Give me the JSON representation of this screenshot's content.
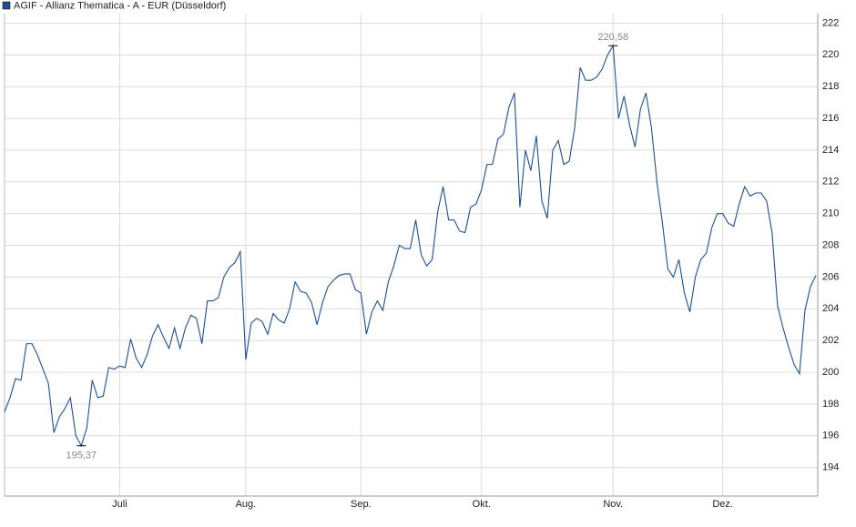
{
  "chart_data": {
    "type": "line",
    "categories": [
      null,
      null,
      null,
      null,
      null,
      null,
      null,
      null,
      null,
      null,
      null,
      null,
      null,
      null,
      null,
      null,
      null,
      null,
      null,
      null,
      null,
      "Juli",
      null,
      null,
      null,
      null,
      null,
      null,
      null,
      null,
      null,
      null,
      null,
      null,
      null,
      null,
      null,
      null,
      null,
      null,
      null,
      null,
      null,
      null,
      "Aug.",
      null,
      null,
      null,
      null,
      null,
      null,
      null,
      null,
      null,
      null,
      null,
      null,
      null,
      null,
      null,
      null,
      null,
      null,
      null,
      null,
      "Sep.",
      null,
      null,
      null,
      null,
      null,
      null,
      null,
      null,
      null,
      null,
      null,
      null,
      null,
      null,
      null,
      null,
      null,
      null,
      null,
      null,
      null,
      "Okt.",
      null,
      null,
      null,
      null,
      null,
      null,
      null,
      null,
      null,
      null,
      null,
      null,
      null,
      null,
      null,
      null,
      null,
      null,
      null,
      null,
      null,
      null,
      null,
      "Nov.",
      null,
      null,
      null,
      null,
      null,
      null,
      null,
      null,
      null,
      null,
      null,
      null,
      null,
      null,
      null,
      null,
      null,
      null,
      null,
      "Dez.",
      null,
      null,
      null,
      null,
      null,
      null,
      null,
      null,
      null,
      null,
      null,
      null,
      null,
      null,
      null,
      null,
      null
    ],
    "series": [
      {
        "name": "AGIF - Allianz Thematica - A - EUR (Düsseldorf)",
        "color": "#1c4f96",
        "values": [
          197.5,
          198.4,
          199.6,
          199.5,
          201.8,
          201.8,
          201.1,
          200.2,
          199.3,
          196.2,
          197.2,
          197.7,
          198.4,
          196.0,
          195.37,
          196.5,
          199.5,
          198.4,
          198.5,
          200.3,
          200.2,
          200.4,
          200.3,
          202.1,
          200.9,
          200.3,
          201.1,
          202.3,
          203.0,
          202.2,
          201.5,
          202.8,
          201.5,
          202.8,
          203.6,
          203.4,
          201.8,
          204.5,
          204.5,
          204.7,
          206.0,
          206.6,
          206.9,
          207.6,
          200.8,
          203.1,
          203.4,
          203.2,
          202.4,
          203.7,
          203.3,
          203.1,
          204.0,
          205.7,
          205.1,
          205.0,
          204.4,
          203.0,
          204.4,
          205.4,
          205.8,
          206.1,
          206.2,
          206.2,
          205.2,
          205.0,
          202.4,
          203.8,
          204.5,
          203.9,
          205.7,
          206.7,
          208.0,
          207.8,
          207.8,
          209.6,
          207.4,
          206.7,
          207.1,
          210.1,
          211.7,
          209.6,
          209.6,
          208.9,
          208.8,
          210.4,
          210.6,
          211.5,
          213.1,
          213.1,
          214.7,
          215.0,
          216.7,
          217.6,
          210.4,
          214.0,
          212.7,
          214.9,
          210.8,
          209.7,
          214.0,
          214.6,
          213.1,
          213.3,
          215.4,
          219.2,
          218.4,
          218.4,
          218.6,
          219.1,
          220.0,
          220.58,
          216.0,
          217.4,
          215.6,
          214.2,
          216.6,
          217.6,
          215.4,
          212.0,
          209.4,
          206.5,
          206.0,
          207.1,
          205.0,
          203.8,
          206.0,
          207.1,
          207.5,
          209.1,
          210.0,
          210.0,
          209.4,
          209.2,
          210.6,
          211.7,
          211.1,
          211.3,
          211.3,
          210.8,
          208.8,
          204.2,
          202.8,
          201.6,
          200.5,
          199.9,
          203.9,
          205.4,
          206.1
        ],
        "value_labels": [
          null,
          null,
          null,
          null,
          null,
          null,
          null,
          null,
          null,
          null,
          null,
          null,
          null,
          null,
          "195,37",
          null,
          null,
          null,
          null,
          null,
          null,
          null,
          null,
          null,
          null,
          null,
          null,
          null,
          null,
          null,
          null,
          null,
          null,
          null,
          null,
          null,
          null,
          null,
          null,
          null,
          null,
          null,
          null,
          null,
          null,
          null,
          null,
          null,
          null,
          null,
          null,
          null,
          null,
          null,
          null,
          null,
          null,
          null,
          null,
          null,
          null,
          null,
          null,
          null,
          null,
          null,
          null,
          null,
          null,
          null,
          null,
          null,
          null,
          null,
          null,
          null,
          null,
          null,
          null,
          null,
          null,
          null,
          null,
          null,
          null,
          null,
          null,
          null,
          null,
          null,
          null,
          null,
          null,
          null,
          null,
          null,
          null,
          null,
          null,
          null,
          null,
          null,
          null,
          null,
          null,
          null,
          null,
          null,
          null,
          null,
          null,
          "220,58",
          null,
          null,
          null,
          null,
          null,
          null,
          null,
          null,
          null,
          null,
          null,
          null,
          null,
          null,
          null,
          null,
          null,
          null,
          null,
          null,
          null,
          null,
          null,
          null,
          null,
          null,
          null,
          null,
          null,
          null,
          null,
          null,
          null,
          null,
          null,
          null
        ]
      }
    ],
    "ylim": [
      192.2,
      222.6
    ],
    "yticks": [
      194,
      196,
      198,
      200,
      202,
      204,
      206,
      208,
      210,
      212,
      214,
      216,
      218,
      220,
      222
    ],
    "grid": true
  }
}
